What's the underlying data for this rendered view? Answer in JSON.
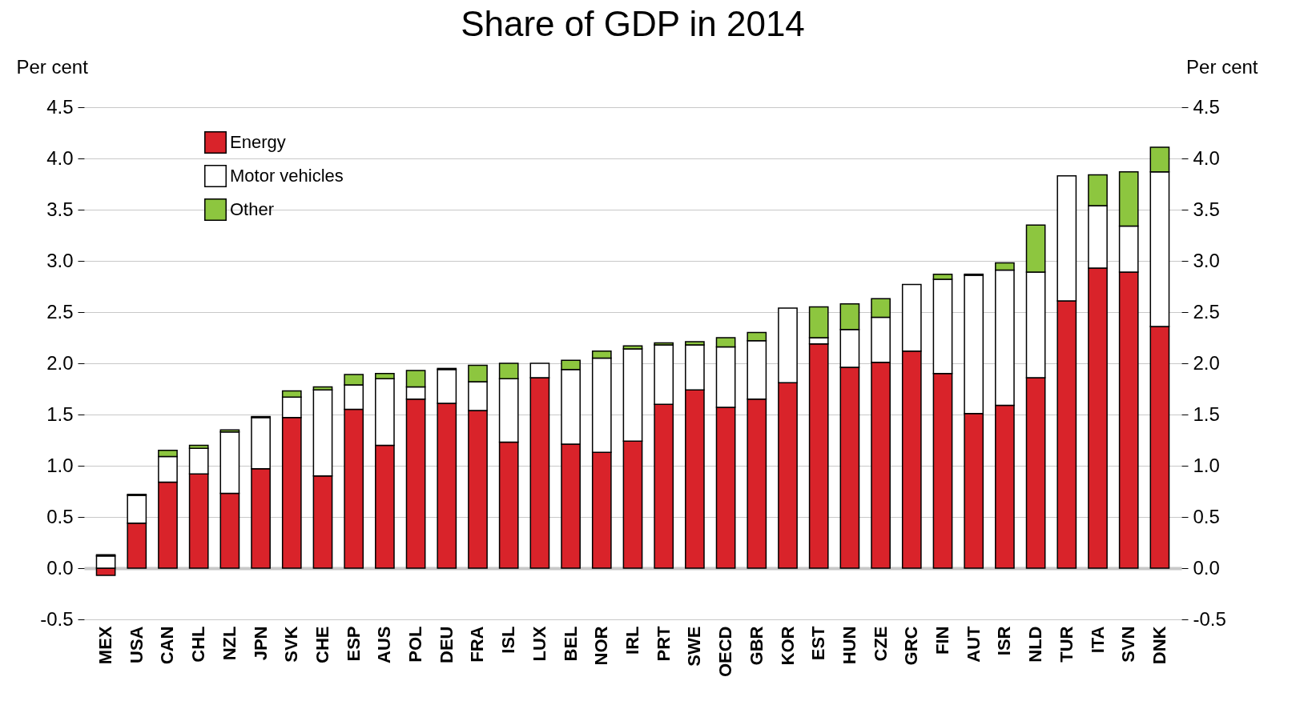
{
  "chart_data": {
    "type": "bar",
    "stacked": true,
    "title": "Share of GDP in 2014",
    "ylabel": "Per cent",
    "y2label": "Per cent",
    "categories": [
      "MEX",
      "USA",
      "CAN",
      "CHL",
      "NZL",
      "JPN",
      "SVK",
      "CHE",
      "ESP",
      "AUS",
      "POL",
      "DEU",
      "FRA",
      "ISL",
      "LUX",
      "BEL",
      "NOR",
      "IRL",
      "PRT",
      "SWE",
      "OECD",
      "GBR",
      "KOR",
      "EST",
      "HUN",
      "CZE",
      "GRC",
      "FIN",
      "AUT",
      "ISR",
      "NLD",
      "TUR",
      "ITA",
      "SVN",
      "DNK"
    ],
    "series": [
      {
        "name": "Energy",
        "color": "#d9232a",
        "values": [
          -0.07,
          0.44,
          0.84,
          0.92,
          0.73,
          0.97,
          1.47,
          0.9,
          1.55,
          1.2,
          1.65,
          1.61,
          1.54,
          1.23,
          1.86,
          1.21,
          1.13,
          1.24,
          1.6,
          1.74,
          1.57,
          1.65,
          1.81,
          2.19,
          1.96,
          2.01,
          2.12,
          1.9,
          1.51,
          1.59,
          1.86,
          2.61,
          2.93,
          2.89,
          2.36
        ]
      },
      {
        "name": "Motor vehicles",
        "color": "#ffffff",
        "values": [
          0.12,
          0.27,
          0.25,
          0.25,
          0.6,
          0.5,
          0.2,
          0.84,
          0.24,
          0.65,
          0.12,
          0.33,
          0.28,
          0.62,
          0.14,
          0.73,
          0.92,
          0.9,
          0.58,
          0.44,
          0.59,
          0.57,
          0.73,
          0.06,
          0.37,
          0.44,
          0.65,
          0.92,
          1.35,
          1.32,
          1.03,
          1.22,
          0.61,
          0.45,
          1.51
        ]
      },
      {
        "name": "Other",
        "color": "#8dc63f",
        "values": [
          0.01,
          0.01,
          0.06,
          0.03,
          0.02,
          0.01,
          0.06,
          0.03,
          0.1,
          0.05,
          0.16,
          0.01,
          0.16,
          0.15,
          null,
          0.09,
          0.07,
          0.03,
          0.02,
          0.03,
          0.09,
          0.08,
          null,
          0.3,
          0.25,
          0.18,
          null,
          0.05,
          0.01,
          0.07,
          0.46,
          null,
          0.3,
          0.53,
          0.24
        ]
      }
    ],
    "ylim": [
      -0.5,
      4.5
    ],
    "yticks": [
      -0.5,
      {
        "value": 0,
        "label": "0.0"
      },
      0.5,
      {
        "value": 1,
        "label": "1.0"
      },
      1.5,
      {
        "value": 2,
        "label": "2.0"
      },
      2.5,
      {
        "value": 3,
        "label": "3.0"
      },
      3.5,
      {
        "value": 4,
        "label": "4.0"
      },
      4.5
    ],
    "y2lim": [
      -0.5,
      4.5
    ],
    "y2ticks": [
      -0.5,
      {
        "value": 0,
        "label": "0.0"
      },
      0.5,
      {
        "value": 1,
        "label": "1.0"
      },
      1.5,
      {
        "value": 2,
        "label": "2.0"
      },
      2.5,
      {
        "value": 3,
        "label": "3.0"
      },
      3.5,
      {
        "value": 4,
        "label": "4.0"
      },
      4.5
    ],
    "grid": "y",
    "legend": "top left"
  }
}
